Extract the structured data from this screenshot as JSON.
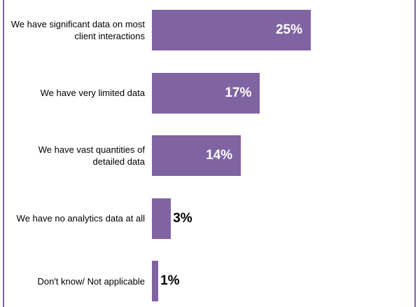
{
  "chart_data": {
    "type": "bar",
    "orientation": "horizontal",
    "categories": [
      "We have significant data on most client interactions",
      "We have very limited data",
      "We have vast quantities of detailed data",
      "We have no analytics data at all",
      "Don't know/ Not applicable"
    ],
    "values": [
      25,
      17,
      14,
      3,
      1
    ],
    "labels": [
      "25%",
      "17%",
      "14%",
      "3%",
      "1%"
    ],
    "unit": "%",
    "xlim": [
      0,
      40
    ],
    "color": "#8064A2",
    "grid": false
  }
}
